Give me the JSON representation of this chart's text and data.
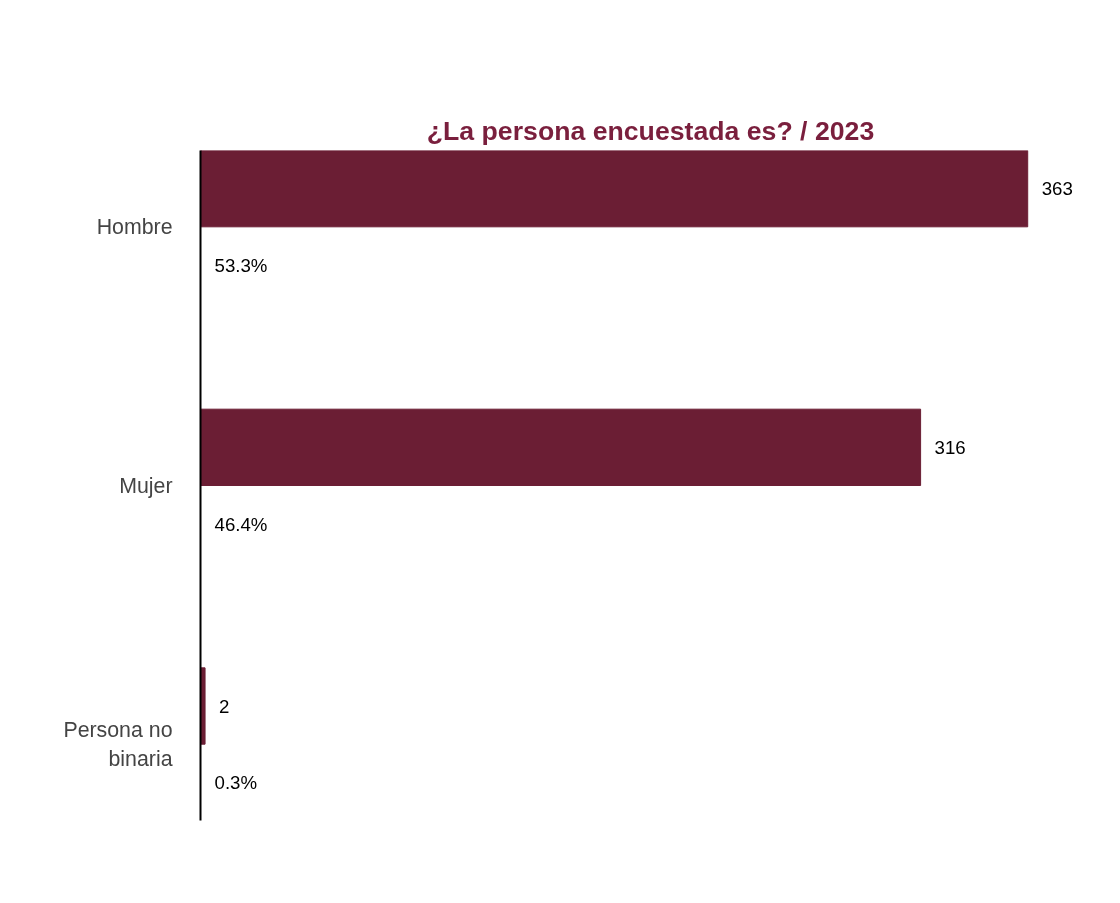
{
  "chart_data": {
    "type": "bar",
    "orientation": "horizontal",
    "title": "¿La persona encuestada es? / 2023",
    "categories": [
      "Hombre",
      "Mujer",
      "Persona no binaria"
    ],
    "values": [
      363,
      316,
      2
    ],
    "color": "#6b1e34",
    "data_labels": true,
    "annotations": [
      "53.3%",
      "46.4%",
      "0.3%"
    ]
  }
}
